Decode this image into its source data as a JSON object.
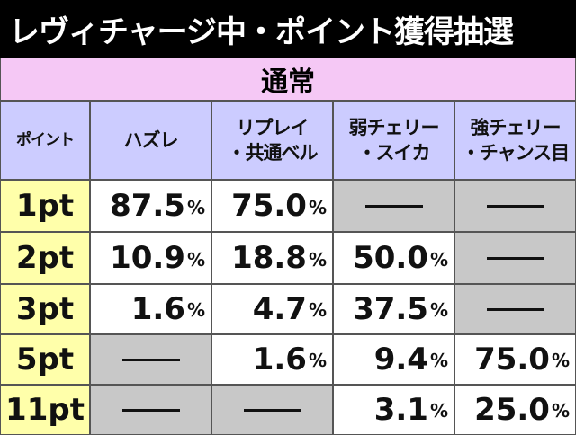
{
  "title": "レヴィチャージ中・ポイント獲得抽選",
  "section": "通常",
  "table": {
    "header": [
      [
        "ポイント"
      ],
      [
        "ハズレ"
      ],
      [
        "リプレイ",
        "・共通ベル"
      ],
      [
        "弱チェリー",
        "・スイカ"
      ],
      [
        "強チェリー",
        "・チャンス目"
      ]
    ],
    "rows": [
      {
        "label": "1pt",
        "cells": [
          {
            "value": "87.5",
            "unit": "%"
          },
          {
            "value": "75.0",
            "unit": "%"
          },
          null,
          null
        ]
      },
      {
        "label": "2pt",
        "cells": [
          {
            "value": "10.9",
            "unit": "%"
          },
          {
            "value": "18.8",
            "unit": "%"
          },
          {
            "value": "50.0",
            "unit": "%"
          },
          null
        ]
      },
      {
        "label": "3pt",
        "cells": [
          {
            "value": "1.6",
            "unit": "%"
          },
          {
            "value": "4.7",
            "unit": "%"
          },
          {
            "value": "37.5",
            "unit": "%"
          },
          null
        ]
      },
      {
        "label": "5pt",
        "cells": [
          null,
          {
            "value": "1.6",
            "unit": "%"
          },
          {
            "value": "9.4",
            "unit": "%"
          },
          {
            "value": "75.0",
            "unit": "%"
          }
        ]
      },
      {
        "label": "11pt",
        "cells": [
          null,
          null,
          {
            "value": "3.1",
            "unit": "%"
          },
          {
            "value": "25.0",
            "unit": "%"
          }
        ]
      }
    ]
  }
}
